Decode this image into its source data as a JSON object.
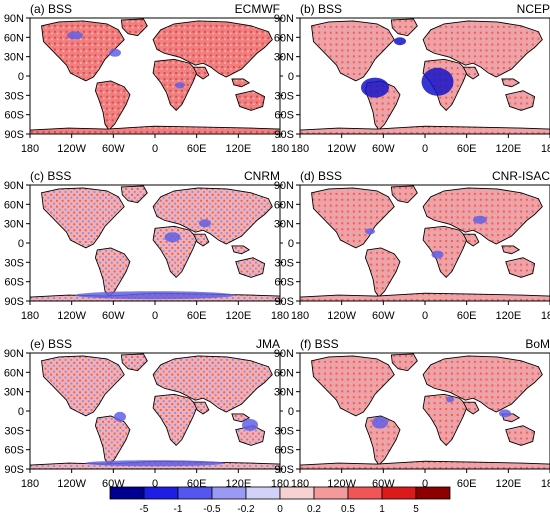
{
  "panels": [
    {
      "tag": "(a) BSS",
      "model": "ECMWF",
      "lat_ticks": true,
      "lon_ticks": true
    },
    {
      "tag": "(b) BSS",
      "model": "NCEP",
      "lat_ticks": true,
      "lon_ticks": true
    },
    {
      "tag": "(c) BSS",
      "model": "CNRM",
      "lat_ticks": true,
      "lon_ticks": true
    },
    {
      "tag": "(d) BSS",
      "model": "CNR-ISAC",
      "lat_ticks": true,
      "lon_ticks": true
    },
    {
      "tag": "(e) BSS",
      "model": "JMA",
      "lat_ticks": true,
      "lon_ticks": true
    },
    {
      "tag": "(f) BSS",
      "model": "BoM",
      "lat_ticks": true,
      "lon_ticks": true
    }
  ],
  "lat_labels": [
    "90N",
    "60N",
    "30N",
    "0",
    "30S",
    "60S",
    "90S"
  ],
  "lon_labels": [
    "180",
    "120W",
    "60W",
    "0",
    "60E",
    "120E",
    "180"
  ],
  "colorbar": {
    "labels": [
      "-5",
      "-1",
      "-0.5",
      "-0.2",
      "0",
      "0.2",
      "0.5",
      "1",
      "5"
    ],
    "colors": [
      "#000090",
      "#1d1de6",
      "#5555f2",
      "#9a9af5",
      "#d2d2f8",
      "#f8d2d2",
      "#f59a9a",
      "#f25555",
      "#dc1a1a",
      "#8c0000"
    ]
  }
}
